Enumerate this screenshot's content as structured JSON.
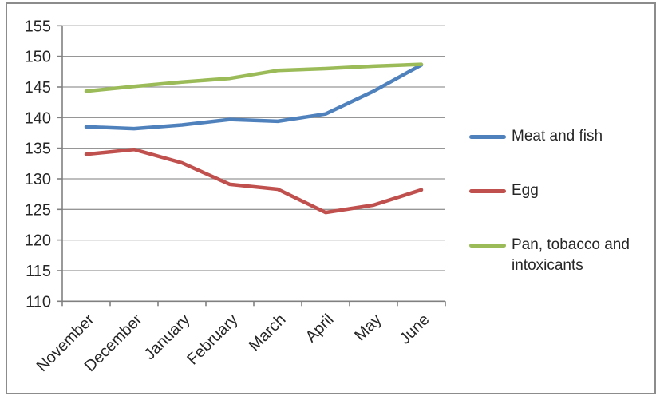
{
  "chart_data": {
    "type": "line",
    "title": "",
    "xlabel": "",
    "ylabel": "",
    "categories": [
      "November",
      "December",
      "January",
      "February",
      "March",
      "April",
      "May",
      "June"
    ],
    "series": [
      {
        "name": "Meat and fish",
        "color": "#4F81BD",
        "values": [
          138.5,
          138.2,
          138.8,
          139.7,
          139.4,
          140.6,
          144.3,
          148.6
        ]
      },
      {
        "name": "Egg",
        "color": "#C0504D",
        "values": [
          134.0,
          134.8,
          132.6,
          129.1,
          128.3,
          124.5,
          125.7,
          128.2
        ]
      },
      {
        "name": "Pan, tobacco and intoxicants",
        "color": "#9BBB59",
        "values": [
          144.3,
          145.1,
          145.8,
          146.4,
          147.7,
          148.0,
          148.4,
          148.7
        ]
      }
    ],
    "ylim": [
      110,
      155
    ],
    "y_ticks": [
      110,
      115,
      120,
      125,
      130,
      135,
      140,
      145,
      150,
      155
    ],
    "grid": true,
    "legend_position": "right",
    "x_label_rotation_deg": 45
  },
  "style_colors": {
    "gridline": "#969696",
    "axis": "#808080",
    "frame_border": "#8C8C8C",
    "text": "#262626",
    "background": "#FFFFFF"
  }
}
